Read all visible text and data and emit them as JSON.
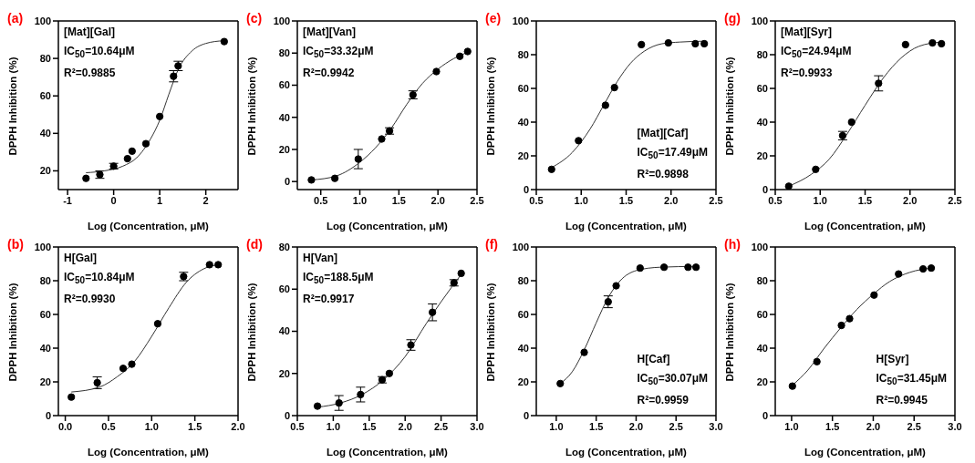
{
  "chart_data": [
    {
      "type": "scatter",
      "title": "(a)",
      "xlabel": "Log (Concentration, μM)",
      "ylabel": "DPPH Inhibition (%)",
      "xlim": [
        -1.2,
        2.7
      ],
      "xticks": [
        -1,
        0,
        1,
        2
      ],
      "ylim": [
        10,
        100
      ],
      "yticks": [
        20,
        40,
        60,
        80,
        100
      ],
      "annotations": [
        "[Mat][Gal]",
        "IC$_{50}$=10.64μM",
        "R²=0.9885"
      ],
      "series": [
        {
          "type": "scatter",
          "color": "#000000",
          "marker": "circle",
          "x": [
            -0.6,
            -0.3,
            0,
            0.3,
            0.4,
            0.7,
            1.0,
            1.3,
            1.4,
            2.4
          ],
          "values": [
            16,
            18,
            22.5,
            26.5,
            30.5,
            34.5,
            49,
            70.5,
            76,
            89
          ],
          "errors": [
            null,
            2,
            1.5,
            null,
            null,
            null,
            null,
            3,
            2.5,
            null
          ]
        },
        {
          "type": "line",
          "color": "#333333",
          "marker": "none",
          "x": [
            -0.6,
            -0.2,
            0.2,
            0.5,
            0.8,
            1.0,
            1.2,
            1.4,
            1.7,
            2.0,
            2.4
          ],
          "values": [
            19,
            20,
            22.5,
            27,
            37,
            47,
            61,
            74,
            84,
            88,
            89.5
          ]
        }
      ]
    },
    {
      "type": "scatter",
      "title": "(c)",
      "xlabel": "Log (Concentration, μM)",
      "ylabel": "DPPH Inhibition (%)",
      "xlim": [
        0.2,
        2.5
      ],
      "xticks": [
        0.5,
        {
          "value": 1,
          "label": "1.0"
        },
        1.5,
        {
          "value": 2,
          "label": "2.0"
        },
        2.5
      ],
      "ylim": [
        -5,
        100
      ],
      "yticks": [
        0,
        20,
        40,
        60,
        80,
        100
      ],
      "annotations": [
        "[Mat][Van]",
        "IC$_{50}$=33.32μM",
        "R²=0.9942"
      ],
      "series": [
        {
          "type": "scatter",
          "color": "#000000",
          "marker": "circle",
          "x": [
            0.38,
            0.68,
            0.98,
            1.28,
            1.38,
            1.68,
            1.98,
            2.28,
            2.38
          ],
          "values": [
            1,
            2,
            14,
            26.5,
            31.5,
            54,
            68.5,
            78,
            81
          ],
          "errors": [
            null,
            null,
            6,
            null,
            2,
            2.5,
            null,
            null,
            null
          ]
        },
        {
          "type": "line",
          "color": "#333333",
          "marker": "none",
          "x": [
            0.38,
            0.7,
            1.0,
            1.2,
            1.4,
            1.6,
            1.8,
            2.0,
            2.2,
            2.38
          ],
          "values": [
            1,
            3.5,
            12,
            21,
            33,
            48,
            61,
            70,
            76.5,
            80.5
          ]
        }
      ]
    },
    {
      "type": "scatter",
      "title": "(e)",
      "xlabel": "Log (Concentration, μM)",
      "ylabel": "DPPH Inhibition (%)",
      "xlim": [
        0.5,
        2.5
      ],
      "xticks": [
        0.5,
        {
          "value": 1,
          "label": "1.0"
        },
        1.5,
        {
          "value": 2,
          "label": "2.0"
        },
        2.5
      ],
      "ylim": [
        0,
        100
      ],
      "yticks": [
        0,
        20,
        40,
        60,
        80,
        100
      ],
      "annotations": [
        "[Mat][Caf]",
        "IC$_{50}$=17.49μM",
        "R²=0.9898"
      ],
      "series": [
        {
          "type": "scatter",
          "color": "#000000",
          "marker": "circle",
          "x": [
            0.67,
            0.97,
            1.27,
            1.37,
            1.67,
            1.97,
            2.27,
            2.37
          ],
          "values": [
            12,
            29,
            50,
            60.5,
            86,
            87,
            86.5,
            86.5
          ]
        },
        {
          "type": "line",
          "color": "#333333",
          "marker": "none",
          "x": [
            0.67,
            0.9,
            1.1,
            1.25,
            1.4,
            1.55,
            1.7,
            1.9,
            2.1,
            2.37
          ],
          "values": [
            13,
            22,
            36,
            50,
            64,
            75,
            82,
            86.5,
            87.5,
            88
          ]
        }
      ]
    },
    {
      "type": "scatter",
      "title": "(g)",
      "xlabel": "Log (Concentration, μM)",
      "ylabel": "DPPH Inhibition (%)",
      "xlim": [
        0.5,
        2.5
      ],
      "xticks": [
        0.5,
        {
          "value": 1,
          "label": "1.0"
        },
        1.5,
        {
          "value": 2,
          "label": "2.0"
        },
        2.5
      ],
      "ylim": [
        0,
        100
      ],
      "yticks": [
        0,
        20,
        40,
        60,
        80,
        100
      ],
      "annotations": [
        "[Mat][Syr]",
        "IC$_{50}$=24.94μM",
        "R²=0.9933"
      ],
      "series": [
        {
          "type": "scatter",
          "color": "#000000",
          "marker": "circle",
          "x": [
            0.65,
            0.95,
            1.25,
            1.35,
            1.65,
            1.95,
            2.25,
            2.35
          ],
          "values": [
            2,
            12,
            32,
            40,
            63,
            86,
            87,
            86.5
          ],
          "errors": [
            null,
            null,
            2.5,
            null,
            4.5,
            null,
            null,
            null
          ]
        },
        {
          "type": "line",
          "color": "#333333",
          "marker": "none",
          "x": [
            0.65,
            0.9,
            1.1,
            1.3,
            1.5,
            1.7,
            1.9,
            2.1,
            2.35
          ],
          "values": [
            2,
            9,
            18,
            33,
            50,
            66,
            78,
            85,
            87.5
          ]
        }
      ]
    },
    {
      "type": "scatter",
      "title": "(b)",
      "xlabel": "Log (Concentration, μM)",
      "ylabel": "DPPH Inhibition (%)",
      "xlim": [
        -0.08,
        2.0
      ],
      "xticks": [
        {
          "value": 0,
          "label": "0.0"
        },
        0.5,
        {
          "value": 1,
          "label": "1.0"
        },
        1.5,
        {
          "value": 2,
          "label": "2.0"
        }
      ],
      "ylim": [
        0,
        100
      ],
      "yticks": [
        0,
        20,
        40,
        60,
        80,
        100
      ],
      "annotations": [
        "H[Gal]",
        "IC$_{50}$=10.84μM",
        "R²=0.9930"
      ],
      "series": [
        {
          "type": "scatter",
          "color": "#000000",
          "marker": "circle",
          "x": [
            0.07,
            0.37,
            0.67,
            0.77,
            1.07,
            1.37,
            1.67,
            1.77
          ],
          "values": [
            11,
            19.5,
            28,
            30.5,
            54.5,
            82.5,
            89.5,
            89.5
          ],
          "errors": [
            null,
            3.5,
            null,
            null,
            null,
            2.5,
            null,
            null
          ]
        },
        {
          "type": "line",
          "color": "#333333",
          "marker": "none",
          "x": [
            0.07,
            0.4,
            0.6,
            0.8,
            1.0,
            1.2,
            1.4,
            1.6,
            1.77
          ],
          "values": [
            14,
            17,
            23,
            32,
            47,
            64,
            79,
            87,
            89.5
          ]
        }
      ]
    },
    {
      "type": "scatter",
      "title": "(d)",
      "xlabel": "Log (Concentration, μM)",
      "ylabel": "DPPH Inhibition (%)",
      "xlim": [
        0.5,
        3.0
      ],
      "xticks": [
        0.5,
        {
          "value": 1,
          "label": "1.0"
        },
        1.5,
        {
          "value": 2,
          "label": "2.0"
        },
        2.5,
        {
          "value": 3,
          "label": "3.0"
        }
      ],
      "ylim": [
        0,
        80
      ],
      "yticks": [
        0,
        20,
        40,
        60,
        80
      ],
      "annotations": [
        "H[Van]",
        "IC$_{50}$=188.5μM",
        "R²=0.9917"
      ],
      "series": [
        {
          "type": "scatter",
          "color": "#000000",
          "marker": "circle",
          "x": [
            0.78,
            1.08,
            1.38,
            1.68,
            1.78,
            2.08,
            2.38,
            2.68,
            2.78
          ],
          "values": [
            4.5,
            6,
            10,
            17,
            20,
            33.5,
            49,
            63,
            67.5
          ],
          "errors": [
            null,
            3.5,
            3.5,
            1.5,
            null,
            2.5,
            4,
            1.5,
            null
          ]
        },
        {
          "type": "line",
          "color": "#333333",
          "marker": "none",
          "x": [
            0.78,
            1.1,
            1.4,
            1.7,
            2.0,
            2.3,
            2.5,
            2.78
          ],
          "values": [
            4,
            6,
            10,
            17,
            28,
            44,
            54,
            67
          ]
        }
      ]
    },
    {
      "type": "scatter",
      "title": "(f)",
      "xlabel": "Log (Concentration, μM)",
      "ylabel": "DPPH Inhibition (%)",
      "xlim": [
        0.75,
        3.0
      ],
      "xticks": [
        {
          "value": 1,
          "label": "1.0"
        },
        1.5,
        {
          "value": 2,
          "label": "2.0"
        },
        2.5,
        {
          "value": 3,
          "label": "3.0"
        }
      ],
      "ylim": [
        0,
        100
      ],
      "yticks": [
        0,
        20,
        40,
        60,
        80,
        100
      ],
      "annotations": [
        "H[Caf]",
        "IC$_{50}$=30.07μM",
        "R²=0.9959"
      ],
      "series": [
        {
          "type": "scatter",
          "color": "#000000",
          "marker": "circle",
          "x": [
            1.05,
            1.35,
            1.65,
            1.75,
            2.05,
            2.35,
            2.65,
            2.75
          ],
          "values": [
            19,
            37.5,
            67.5,
            77,
            87.5,
            88,
            88,
            88
          ],
          "errors": [
            null,
            null,
            3.5,
            null,
            null,
            null,
            null,
            null
          ]
        },
        {
          "type": "line",
          "color": "#333333",
          "marker": "none",
          "x": [
            1.05,
            1.2,
            1.35,
            1.5,
            1.65,
            1.8,
            2.0,
            2.3,
            2.75
          ],
          "values": [
            19,
            26,
            39,
            55,
            70,
            80,
            86,
            88,
            88.5
          ]
        }
      ]
    },
    {
      "type": "scatter",
      "title": "(h)",
      "xlabel": "Log (Concentration, μM)",
      "ylabel": "DPPH Inhibition (%)",
      "xlim": [
        0.8,
        3.0
      ],
      "xticks": [
        {
          "value": 1,
          "label": "1.0"
        },
        1.5,
        {
          "value": 2,
          "label": "2.0"
        },
        2.5,
        {
          "value": 3,
          "label": "3.0"
        }
      ],
      "ylim": [
        0,
        100
      ],
      "yticks": [
        0,
        20,
        40,
        60,
        80,
        100
      ],
      "annotations": [
        "H[Syr]",
        "IC$_{50}$=31.45μM",
        "R²=0.9945"
      ],
      "series": [
        {
          "type": "scatter",
          "color": "#000000",
          "marker": "circle",
          "x": [
            1.01,
            1.31,
            1.61,
            1.71,
            2.01,
            2.31,
            2.61,
            2.71
          ],
          "values": [
            17.5,
            32,
            53.5,
            57.5,
            71.5,
            84,
            87,
            87.5
          ]
        },
        {
          "type": "line",
          "color": "#333333",
          "marker": "none",
          "x": [
            1.01,
            1.2,
            1.4,
            1.6,
            1.8,
            2.0,
            2.2,
            2.45,
            2.71
          ],
          "values": [
            18,
            27,
            40,
            52,
            63,
            72,
            79.5,
            85,
            87.5
          ]
        }
      ]
    }
  ]
}
